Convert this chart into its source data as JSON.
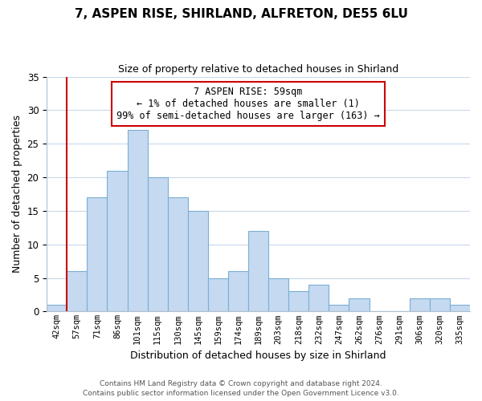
{
  "title": "7, ASPEN RISE, SHIRLAND, ALFRETON, DE55 6LU",
  "subtitle": "Size of property relative to detached houses in Shirland",
  "xlabel": "Distribution of detached houses by size in Shirland",
  "ylabel": "Number of detached properties",
  "bar_labels": [
    "42sqm",
    "57sqm",
    "71sqm",
    "86sqm",
    "101sqm",
    "115sqm",
    "130sqm",
    "145sqm",
    "159sqm",
    "174sqm",
    "189sqm",
    "203sqm",
    "218sqm",
    "232sqm",
    "247sqm",
    "262sqm",
    "276sqm",
    "291sqm",
    "306sqm",
    "320sqm",
    "335sqm"
  ],
  "bar_values": [
    1,
    6,
    17,
    21,
    27,
    20,
    17,
    15,
    5,
    6,
    12,
    5,
    3,
    4,
    1,
    2,
    0,
    0,
    2,
    2,
    1
  ],
  "bar_color": "#c5d9f0",
  "bar_edge_color": "#7bafd4",
  "highlight_color": "#cc0000",
  "ylim": [
    0,
    35
  ],
  "yticks": [
    0,
    5,
    10,
    15,
    20,
    25,
    30,
    35
  ],
  "annotation_title": "7 ASPEN RISE: 59sqm",
  "annotation_line1": "← 1% of detached houses are smaller (1)",
  "annotation_line2": "99% of semi-detached houses are larger (163) →",
  "annotation_box_color": "#ffffff",
  "annotation_box_edge": "#cc0000",
  "footer1": "Contains HM Land Registry data © Crown copyright and database right 2024.",
  "footer2": "Contains public sector information licensed under the Open Government Licence v3.0.",
  "background_color": "#ffffff",
  "grid_color": "#c8d8ea"
}
